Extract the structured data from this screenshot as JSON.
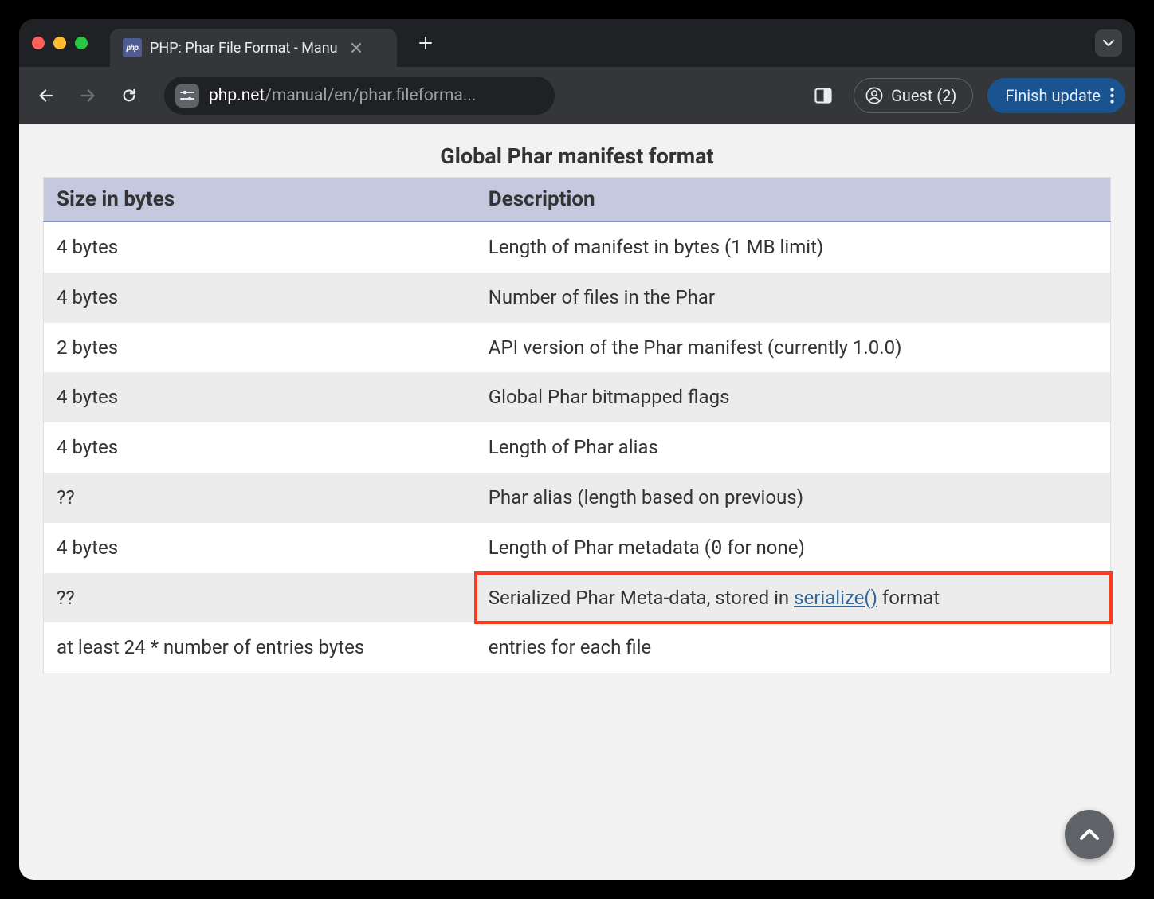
{
  "browser": {
    "tab": {
      "favicon_label": "php",
      "title": "PHP: Phar File Format - Manu"
    },
    "address": {
      "domain": "php.net",
      "path": "/manual/en/phar.fileforma..."
    },
    "guest_label": "Guest (2)",
    "finish_update_label": "Finish update"
  },
  "page": {
    "caption": "Global Phar manifest format",
    "columns": [
      "Size in bytes",
      "Description"
    ],
    "rows": [
      {
        "size": "4 bytes",
        "desc": "Length of manifest in bytes (1 MB limit)"
      },
      {
        "size": "4 bytes",
        "desc": "Number of files in the Phar"
      },
      {
        "size": "2 bytes",
        "desc": "API version of the Phar manifest (currently 1.0.0)"
      },
      {
        "size": "4 bytes",
        "desc": "Global Phar bitmapped flags"
      },
      {
        "size": "4 bytes",
        "desc": "Length of Phar alias"
      },
      {
        "size": "??",
        "desc": "Phar alias (length based on previous)"
      },
      {
        "size": "4 bytes",
        "desc_prefix": "Length of Phar metadata (",
        "desc_code": "0",
        "desc_suffix": " for none)"
      },
      {
        "size": "??",
        "desc_prefix": "Serialized Phar Meta-data, stored in ",
        "desc_link": "serialize()",
        "desc_suffix": " format",
        "highlight": true
      },
      {
        "size": "at least 24 * number of entries bytes",
        "desc": "entries for each file"
      }
    ],
    "styling": {
      "header_bg": "#c4c9df",
      "header_border": "#8892bf",
      "row_even_bg": "#ececec",
      "row_odd_bg": "#ffffff",
      "link_color": "#336699",
      "highlight_border": "#ff3b1f",
      "page_bg": "#f2f2f2",
      "font_size_body": 24,
      "font_size_header": 26,
      "font_size_caption": 27
    }
  }
}
